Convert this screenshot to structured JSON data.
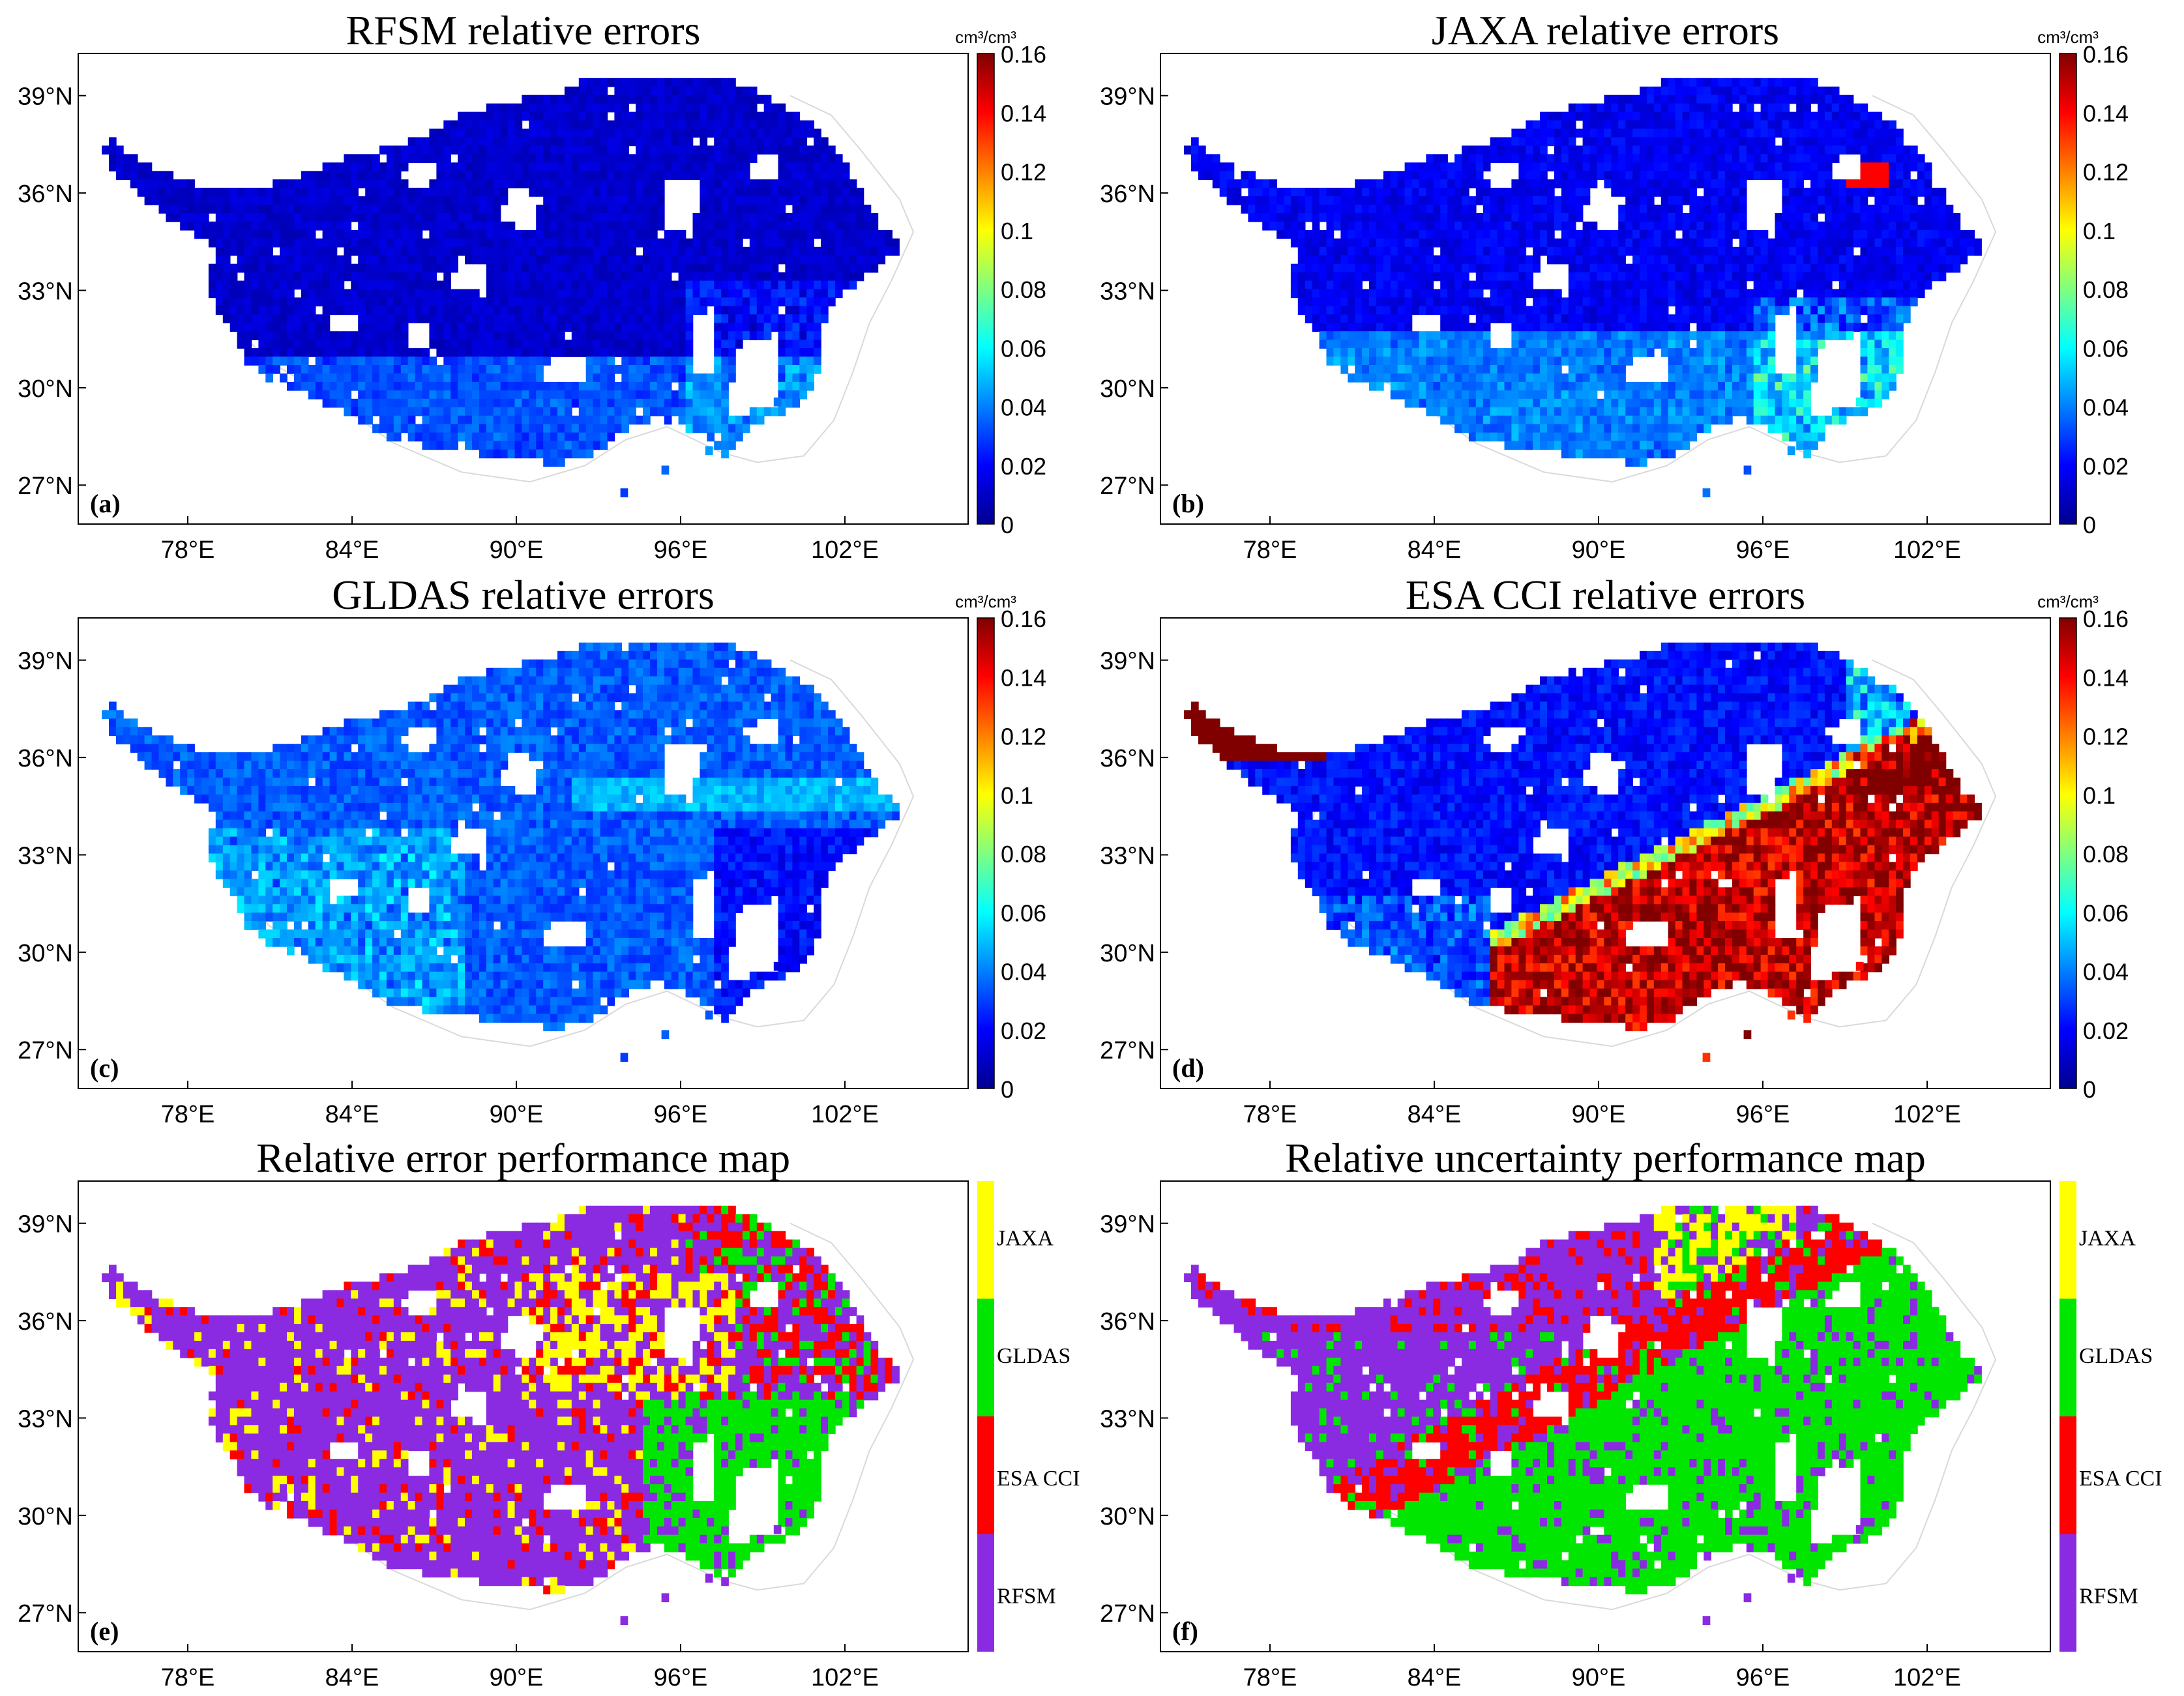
{
  "panels": [
    {
      "id": "a",
      "title": "RFSM relative errors",
      "label": "(a)",
      "kind": "error",
      "model": "rfsm"
    },
    {
      "id": "b",
      "title": "JAXA relative errors",
      "label": "(b)",
      "kind": "error",
      "model": "jaxa"
    },
    {
      "id": "c",
      "title": "GLDAS relative errors",
      "label": "(c)",
      "kind": "error",
      "model": "gldas"
    },
    {
      "id": "d",
      "title": "ESA CCI relative errors",
      "label": "(d)",
      "kind": "error",
      "model": "esa"
    },
    {
      "id": "e",
      "title": "Relative error performance map",
      "label": "(e)",
      "kind": "category",
      "model": "best_error"
    },
    {
      "id": "f",
      "title": "Relative uncertainty performance map",
      "label": "(f)",
      "kind": "category",
      "model": "best_uncertainty"
    }
  ],
  "axes": {
    "lon_ticks": [
      "78°E",
      "84°E",
      "90°E",
      "96°E",
      "102°E"
    ],
    "lon_values": [
      78,
      84,
      90,
      96,
      102
    ],
    "lat_ticks": [
      "39°N",
      "36°N",
      "33°N",
      "30°N",
      "27°N"
    ],
    "lat_values": [
      39,
      36,
      33,
      30,
      27
    ],
    "lon_range": [
      74.0,
      106.5
    ],
    "lat_range": [
      25.8,
      40.3
    ]
  },
  "colorbar": {
    "unit": "cm³/cm³",
    "ticks": [
      "0.16",
      "0.14",
      "0.12",
      "0.1",
      "0.08",
      "0.06",
      "0.04",
      "0.02",
      "0"
    ],
    "tick_values": [
      0.16,
      0.14,
      0.12,
      0.1,
      0.08,
      0.06,
      0.04,
      0.02,
      0
    ],
    "range": [
      0,
      0.16
    ],
    "colormap": "jet"
  },
  "categories": [
    {
      "label": "JAXA",
      "color": "#ffff00"
    },
    {
      "label": "GLDAS",
      "color": "#00e600"
    },
    {
      "label": "ESA CCI",
      "color": "#ff0000"
    },
    {
      "label": "RFSM",
      "color": "#8a2be2"
    }
  ],
  "colors": {
    "frame": "#000000",
    "background": "#ffffff",
    "boundary": "#d9d9d9"
  }
}
